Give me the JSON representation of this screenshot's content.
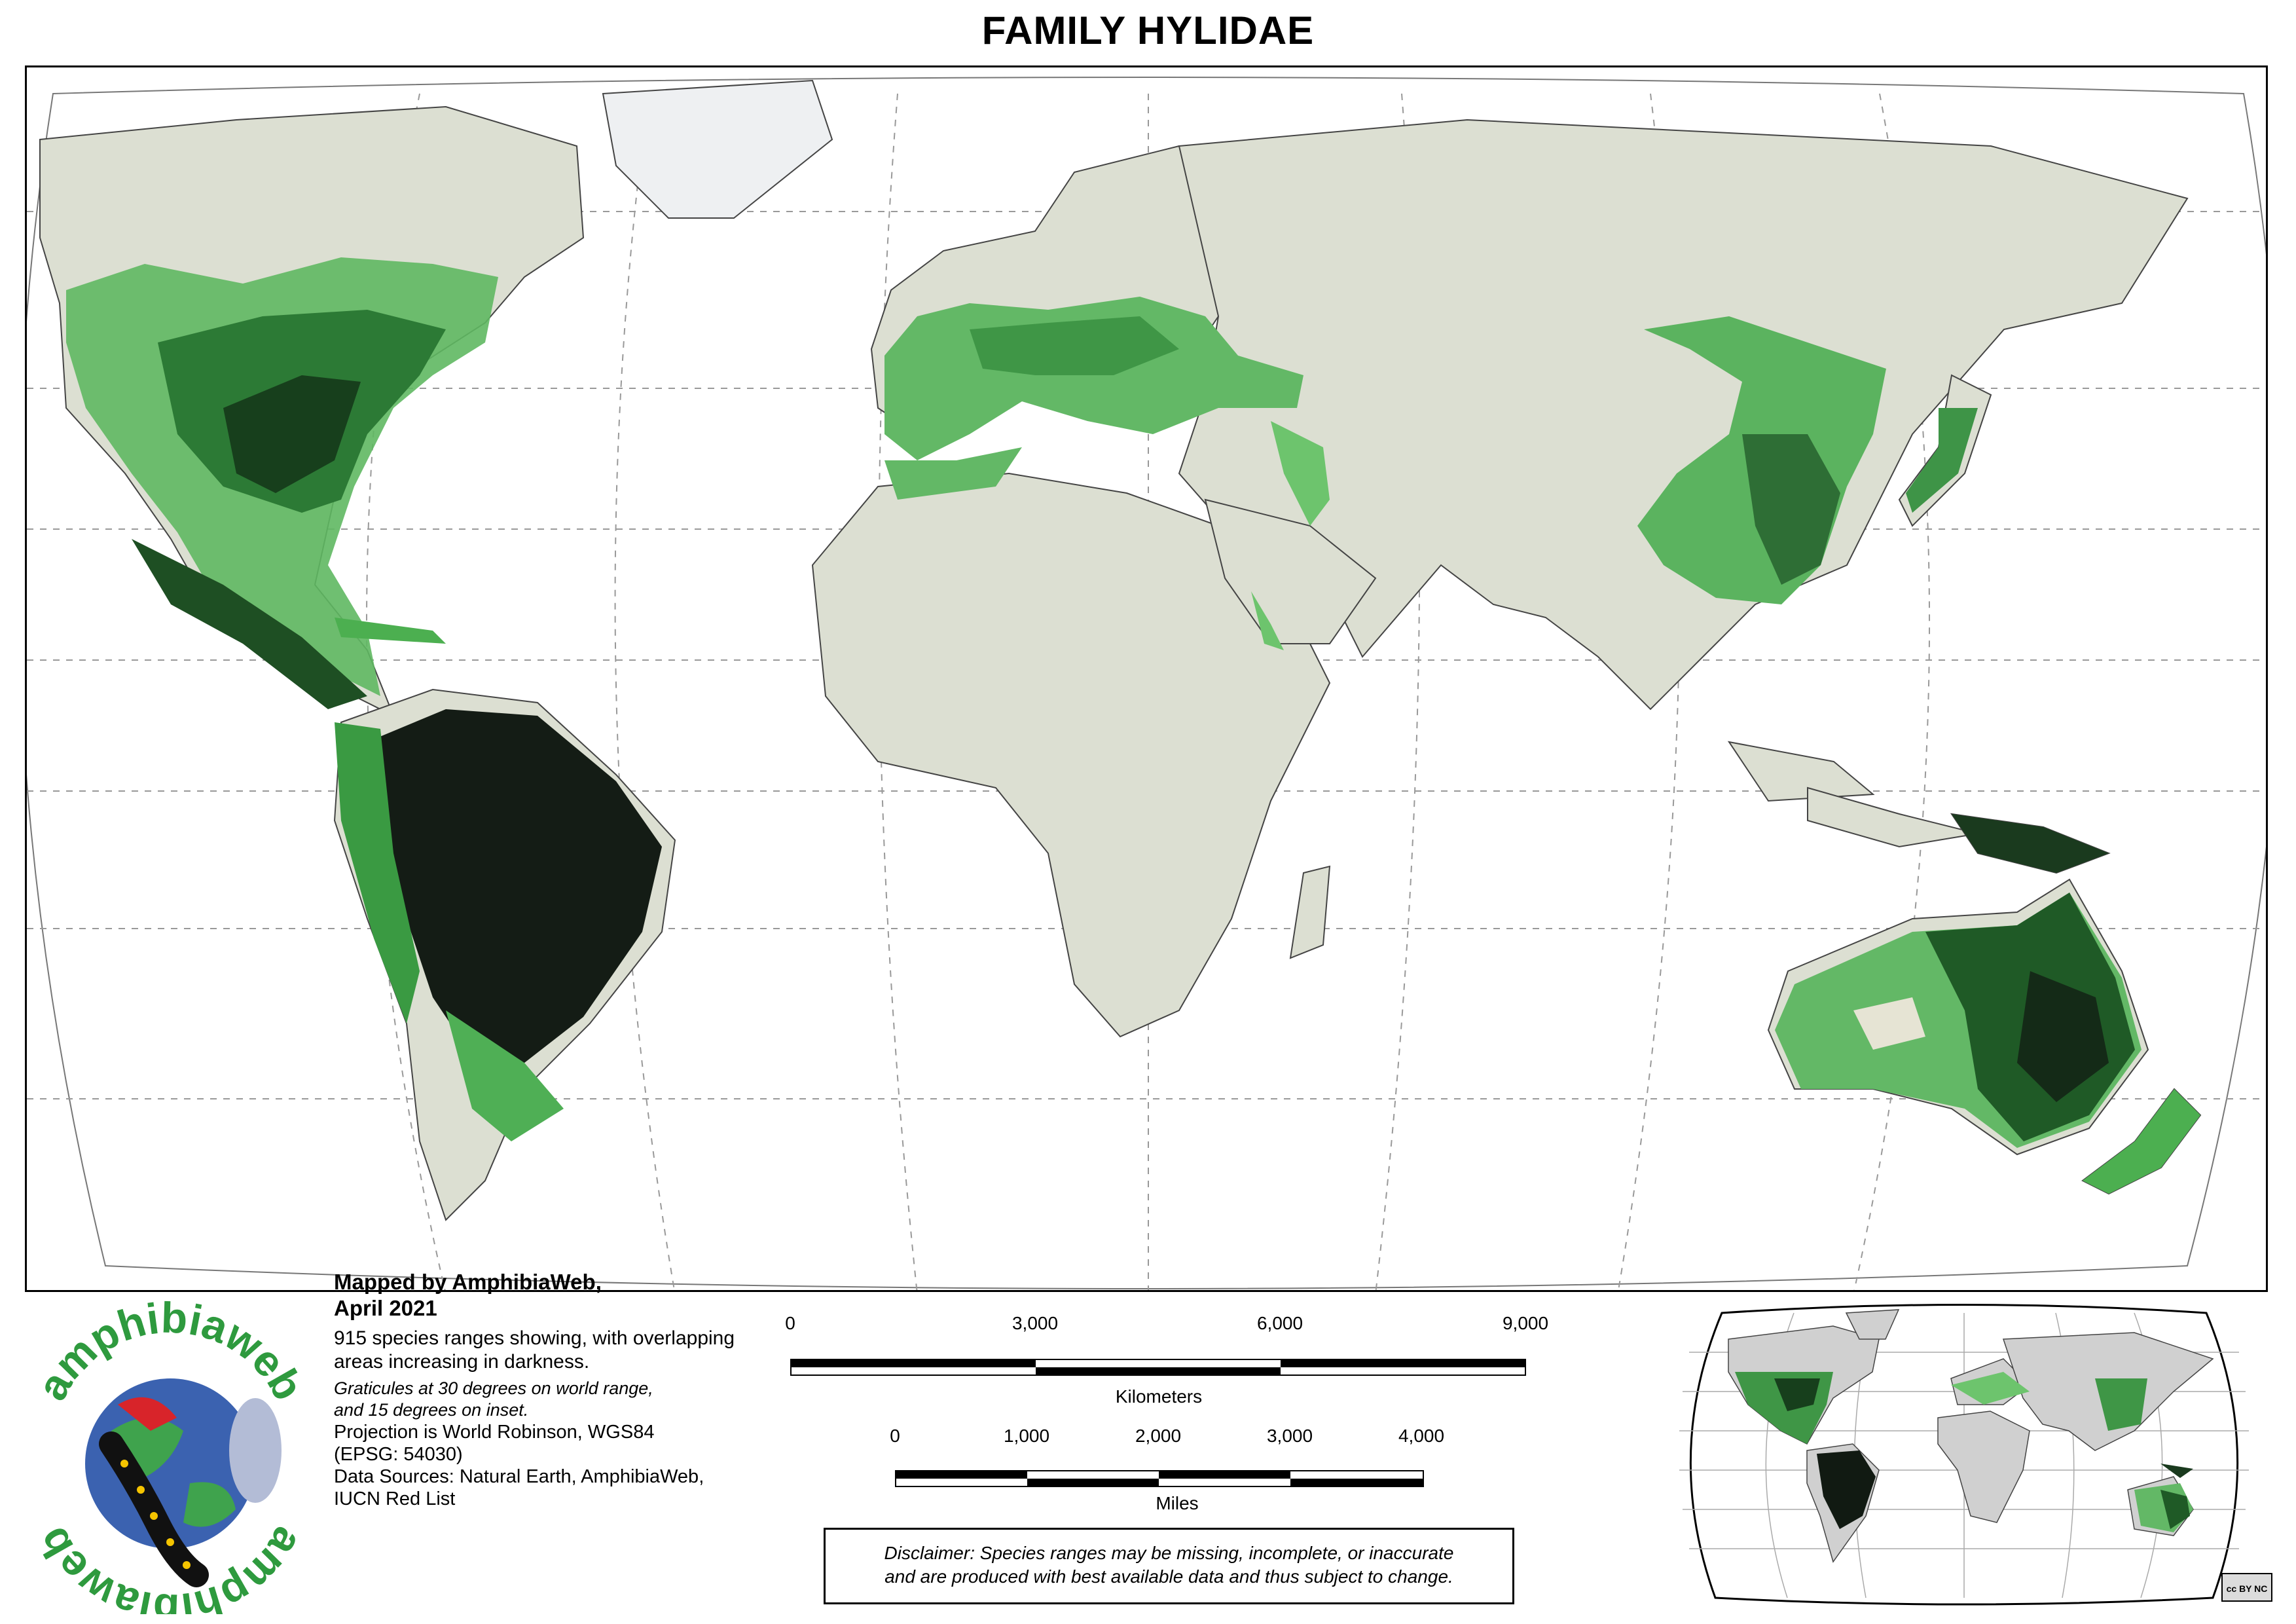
{
  "title": "FAMILY HYLIDAE",
  "info": {
    "mapped_by": "Mapped by AmphibiaWeb,",
    "date": "April 2021",
    "description": "915 species ranges showing, with overlapping areas increasing in darkness.",
    "graticules_1": "Graticules at 30 degrees on world range,",
    "graticules_2": "and 15 degrees on inset.",
    "projection_1": "Projection is World Robinson, WGS84",
    "projection_2": "(EPSG: 54030)",
    "sources_1": "Data Sources: Natural Earth, AmphibiaWeb,",
    "sources_2": "IUCN Red List"
  },
  "scale_km": {
    "ticks": [
      "0",
      "3,000",
      "6,000",
      "9,000"
    ],
    "unit": "Kilometers"
  },
  "scale_mi": {
    "ticks": [
      "0",
      "1,000",
      "2,000",
      "3,000",
      "4,000"
    ],
    "unit": "Miles"
  },
  "disclaimer": {
    "line1": "Disclaimer: Species ranges may be missing, incomplete, or inaccurate",
    "line2": "and are produced with best available data and thus subject to change."
  },
  "logo": {
    "top_text": "amphibiaweb",
    "bottom_text": "amphibiaweb"
  },
  "license": "cc BY NC",
  "colors": {
    "land": "#dcdfd2",
    "ocean": "#ffffff",
    "range_light": "#6dc46d",
    "range_mid": "#2e8f3a",
    "range_dark": "#0f3a18",
    "range_darkest": "#111a12",
    "logo_green": "#2e9a3e"
  }
}
